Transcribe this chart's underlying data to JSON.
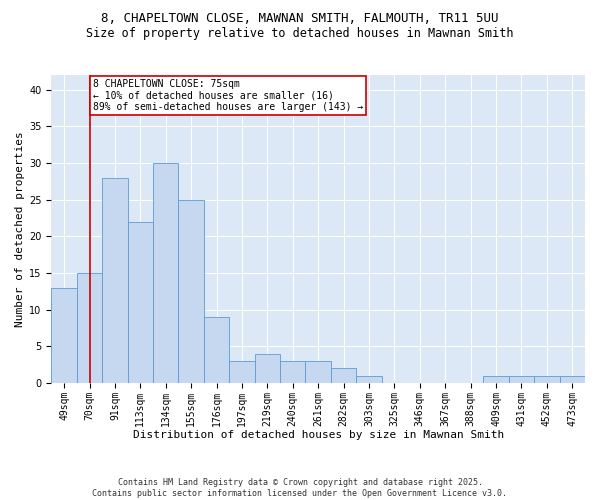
{
  "title1": "8, CHAPELTOWN CLOSE, MAWNAN SMITH, FALMOUTH, TR11 5UU",
  "title2": "Size of property relative to detached houses in Mawnan Smith",
  "xlabel": "Distribution of detached houses by size in Mawnan Smith",
  "ylabel": "Number of detached properties",
  "categories": [
    "49sqm",
    "70sqm",
    "91sqm",
    "113sqm",
    "134sqm",
    "155sqm",
    "176sqm",
    "197sqm",
    "219sqm",
    "240sqm",
    "261sqm",
    "282sqm",
    "303sqm",
    "325sqm",
    "346sqm",
    "367sqm",
    "388sqm",
    "409sqm",
    "431sqm",
    "452sqm",
    "473sqm"
  ],
  "values": [
    13,
    15,
    28,
    22,
    30,
    25,
    9,
    3,
    4,
    3,
    3,
    2,
    1,
    0,
    0,
    0,
    0,
    1,
    1,
    1,
    1
  ],
  "bar_color": "#c5d8f0",
  "bar_edge_color": "#5b9bd5",
  "vline_x": 1,
  "vline_color": "#cc0000",
  "annotation_text": "8 CHAPELTOWN CLOSE: 75sqm\n← 10% of detached houses are smaller (16)\n89% of semi-detached houses are larger (143) →",
  "annotation_box_color": "#ffffff",
  "annotation_box_edge": "#cc0000",
  "ylim": [
    0,
    42
  ],
  "yticks": [
    0,
    5,
    10,
    15,
    20,
    25,
    30,
    35,
    40
  ],
  "bg_color": "#dce8f5",
  "footer": "Contains HM Land Registry data © Crown copyright and database right 2025.\nContains public sector information licensed under the Open Government Licence v3.0.",
  "title_fontsize": 9,
  "subtitle_fontsize": 8.5,
  "axis_fontsize": 8,
  "tick_fontsize": 7,
  "footer_fontsize": 6,
  "annotation_fontsize": 7
}
